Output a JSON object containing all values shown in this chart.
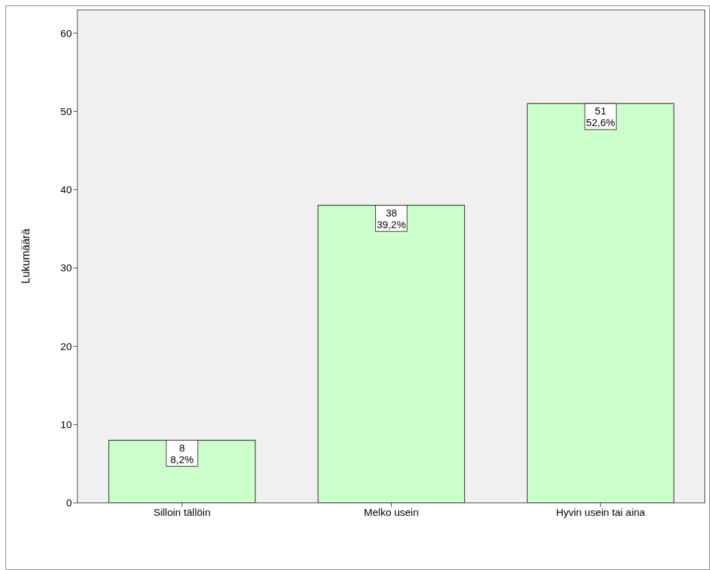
{
  "chart_data": {
    "type": "bar",
    "ylabel": "Lukumäärä",
    "categories": [
      "Silloin tällöin",
      "Melko usein",
      "Hyvin usein tai aina"
    ],
    "values": [
      8,
      38,
      51
    ],
    "color": "#ccffcc",
    "value_labels": [
      "8\n8,2%",
      "38\n39,2%",
      "51\n52,6%"
    ],
    "ylim": [
      0,
      63
    ],
    "yticks": [
      0,
      10,
      20,
      30,
      40,
      50,
      60
    ],
    "grid": false
  }
}
